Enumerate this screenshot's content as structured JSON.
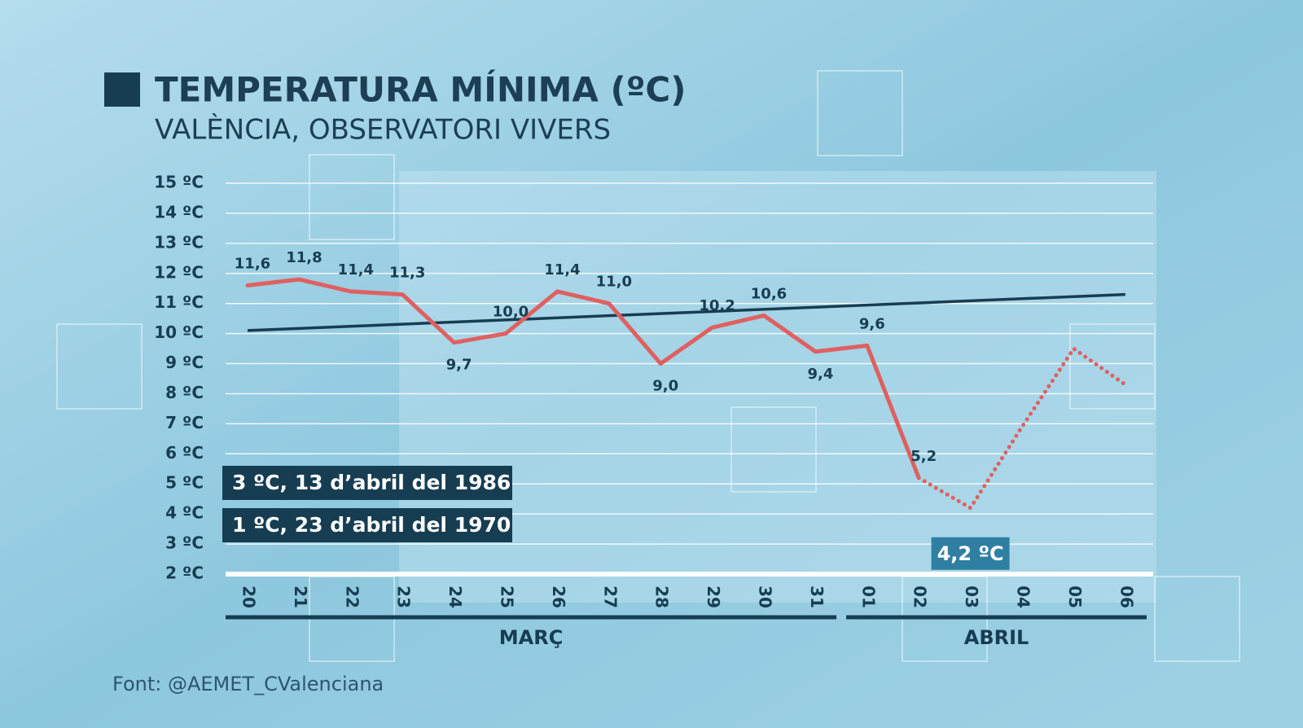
{
  "chart_data": {
    "type": "line",
    "title": "TEMPERATURA MÍNIMA (ºC)",
    "subtitle": "VALÈNCIA, OBSERVATORI VIVERS",
    "source": "Font: @AEMET_CValenciana",
    "categories": [
      "20",
      "21",
      "22",
      "23",
      "24",
      "25",
      "26",
      "27",
      "28",
      "29",
      "30",
      "31",
      "01",
      "02",
      "03",
      "04",
      "05",
      "06"
    ],
    "months": [
      "MARÇ",
      "ABRIL"
    ],
    "series": [
      {
        "color": "#e06060",
        "style": "solid",
        "values": [
          11.6,
          11.8,
          11.4,
          11.3,
          9.7,
          10.0,
          11.4,
          11.0,
          9.0,
          10.2,
          10.6,
          9.4,
          9.6,
          5.2,
          null,
          null,
          null,
          null
        ],
        "value_labels": [
          "11,6",
          "11,8",
          "11,4",
          "11,3",
          "9,7",
          "10,0",
          "11,4",
          "11,0",
          "9,0",
          "10,2",
          "10,6",
          "9,4",
          "9,6",
          "5,2",
          null,
          null,
          null,
          null
        ]
      },
      {
        "color": "#e06060",
        "style": "dotted",
        "values": [
          null,
          null,
          null,
          null,
          null,
          null,
          null,
          null,
          null,
          null,
          null,
          null,
          null,
          5.2,
          4.2,
          6.9,
          9.5,
          8.3
        ],
        "value_labels": [
          null,
          null,
          null,
          null,
          null,
          null,
          null,
          null,
          null,
          null,
          null,
          null,
          null,
          null,
          "4,2 ºC",
          null,
          null,
          null
        ]
      }
    ],
    "trend": {
      "color": "#173d52",
      "values": [
        10.1,
        11.3
      ]
    },
    "annotations": [
      "3 ºC, 13 d’abril del 1986",
      "1 ºC, 23 d’abril del 1970"
    ],
    "ylim": [
      2,
      15
    ],
    "yticks": [
      {
        "value": 15,
        "label": "15 ºC"
      },
      {
        "value": 14,
        "label": "14 ºC"
      },
      {
        "value": 13,
        "label": "13 ºC"
      },
      {
        "value": 12,
        "label": "12 ºC"
      },
      {
        "value": 11,
        "label": "11 ºC"
      },
      {
        "value": 10,
        "label": "10 ºC"
      },
      {
        "value": 9,
        "label": "9 ºC"
      },
      {
        "value": 8,
        "label": "8 ºC"
      },
      {
        "value": 7,
        "label": "7 ºC"
      },
      {
        "value": 6,
        "label": "6 ºC"
      },
      {
        "value": 5,
        "label": "5 ºC"
      },
      {
        "value": 4,
        "label": "4 ºC"
      },
      {
        "value": 3,
        "label": "3 ºC"
      },
      {
        "value": 2,
        "label": "2 ºC"
      }
    ],
    "grid": true
  }
}
